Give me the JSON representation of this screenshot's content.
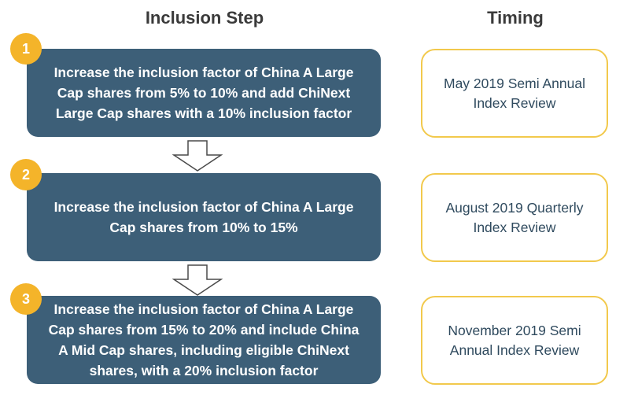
{
  "headers": {
    "step": "Inclusion Step",
    "timing": "Timing"
  },
  "steps": [
    {
      "number": "1",
      "text": "Increase the inclusion factor of China A Large\nCap shares from 5% to 10% and add ChiNext\nLarge Cap shares with a 10% inclusion factor",
      "timing": "May 2019 Semi Annual\nIndex Review"
    },
    {
      "number": "2",
      "text": "Increase the inclusion factor of China A Large\nCap shares from 10% to 15%",
      "timing": "August 2019 Quarterly\nIndex Review"
    },
    {
      "number": "3",
      "text": "Increase the inclusion factor of China A Large\nCap shares from 15% to 20% and include China\nA Mid Cap shares, including eligible ChiNext\nshares, with a 20% inclusion factor",
      "timing": "November 2019 Semi\nAnnual Index Review"
    }
  ],
  "colors": {
    "step_fill": "#3d5f78",
    "badge_fill": "#f4b42a",
    "timing_border": "#f2c94c",
    "timing_text": "#2f4a5e"
  }
}
